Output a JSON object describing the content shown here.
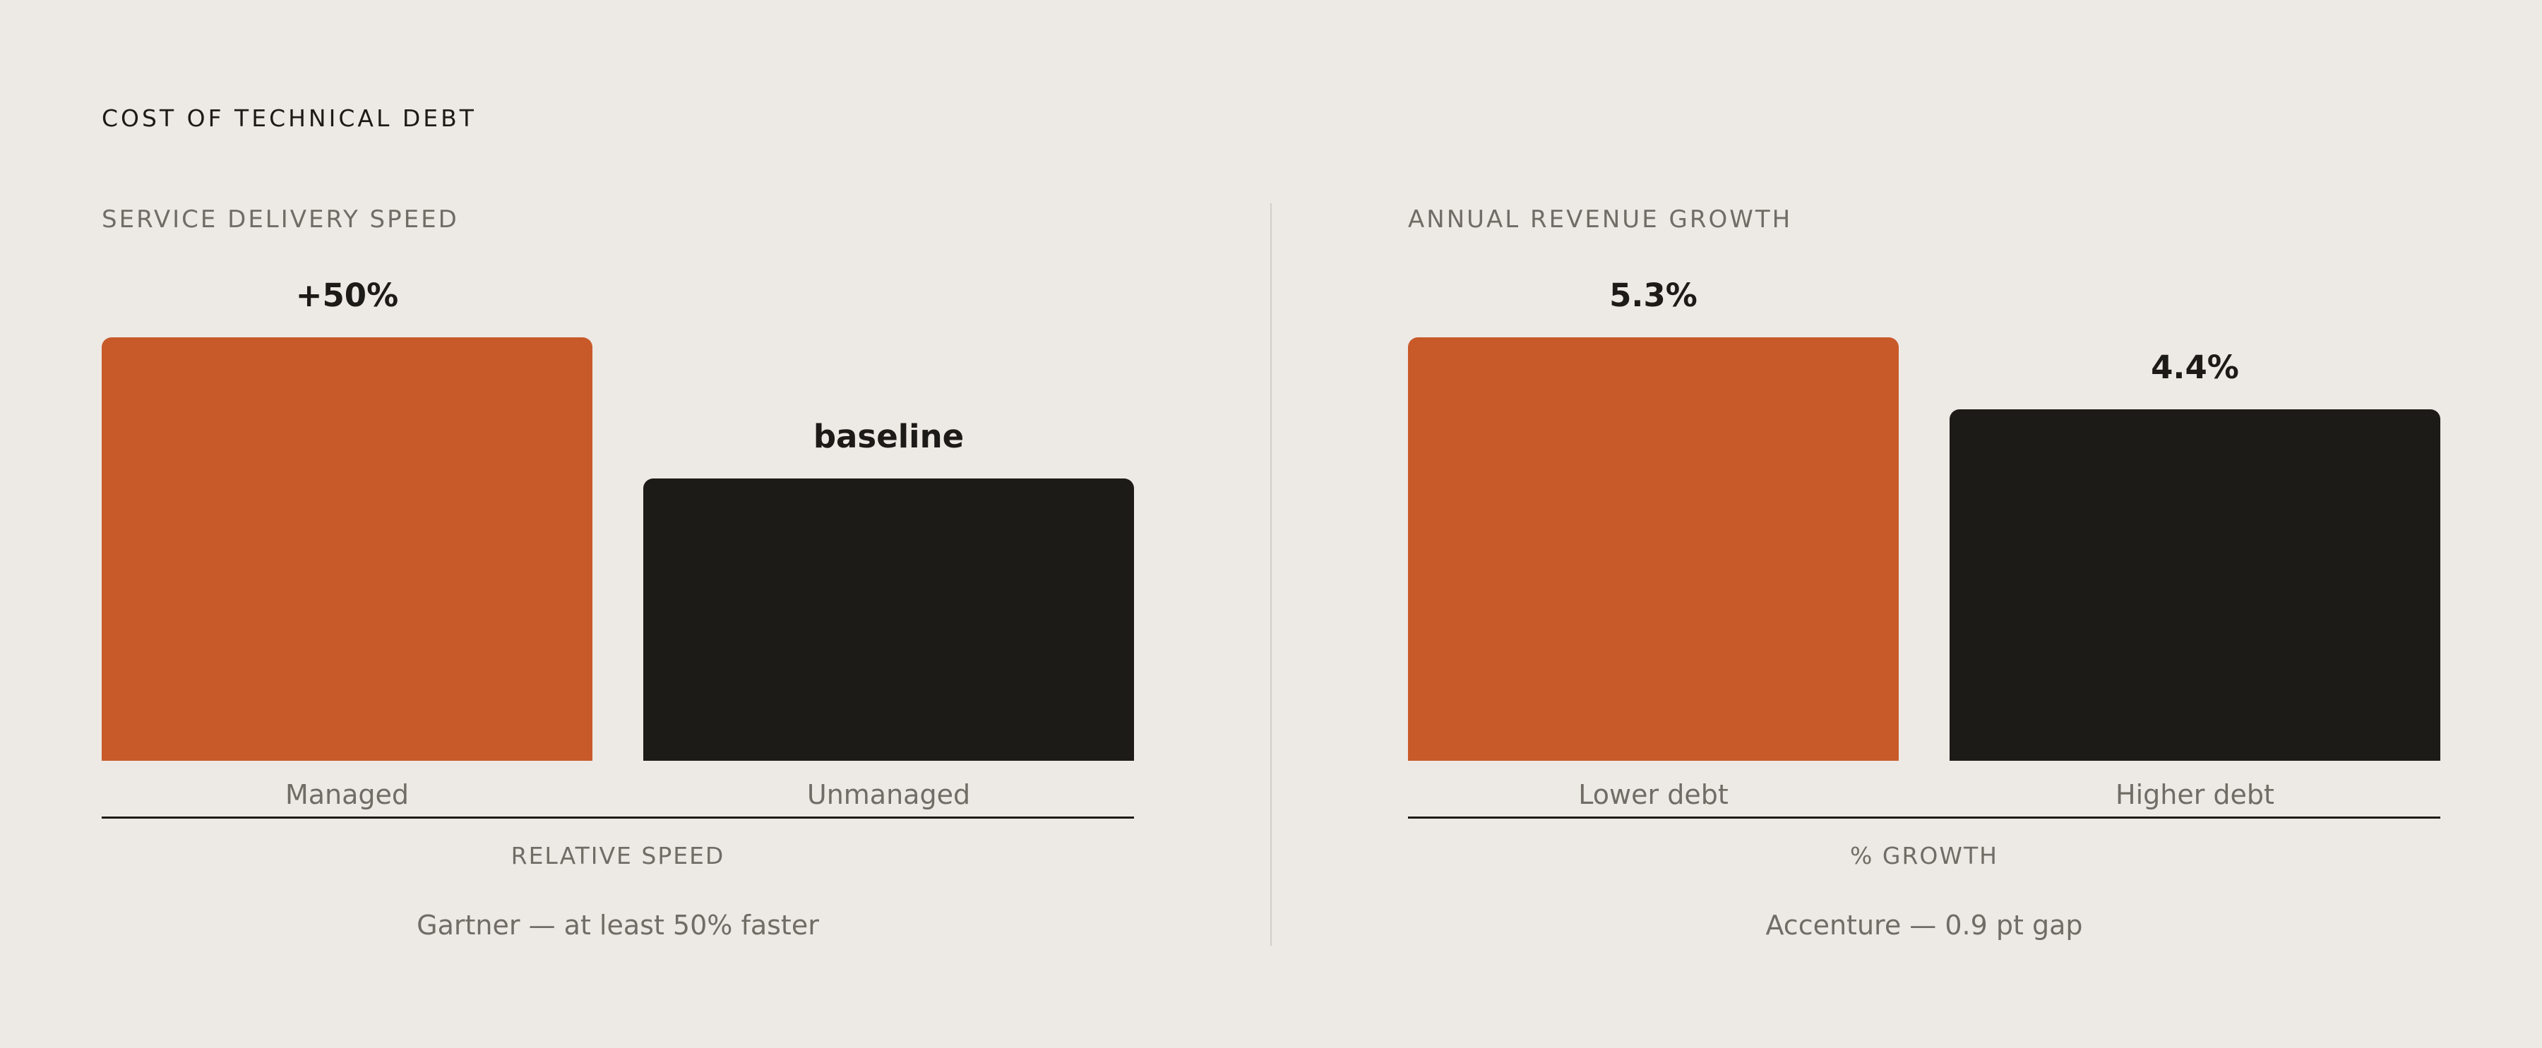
{
  "page": {
    "title": "COST OF TECHNICAL DEBT"
  },
  "colors": {
    "accent": "#c85a2a",
    "dark": "#1d1b18",
    "background": "#ede9e4",
    "muted": "#716c66"
  },
  "chart_data": [
    {
      "type": "bar",
      "title": "SERVICE DELIVERY SPEED",
      "categories": [
        "Managed",
        "Unmanaged"
      ],
      "values": [
        150,
        100
      ],
      "data_labels": [
        "+50%",
        "baseline"
      ],
      "bar_colors": [
        "#c85a2a",
        "#1d1b18"
      ],
      "xlabel": "RELATIVE SPEED",
      "ylim": [
        0,
        150
      ],
      "source": "Gartner — at least 50% faster",
      "grid": false
    },
    {
      "type": "bar",
      "title": "ANNUAL REVENUE GROWTH",
      "categories": [
        "Lower debt",
        "Higher debt"
      ],
      "values": [
        5.3,
        4.4
      ],
      "data_labels": [
        "5.3%",
        "4.4%"
      ],
      "bar_colors": [
        "#c85a2a",
        "#1d1b18"
      ],
      "xlabel": "% GROWTH",
      "ylim": [
        0,
        5.3
      ],
      "source": "Accenture — 0.9 pt gap",
      "grid": false
    }
  ]
}
